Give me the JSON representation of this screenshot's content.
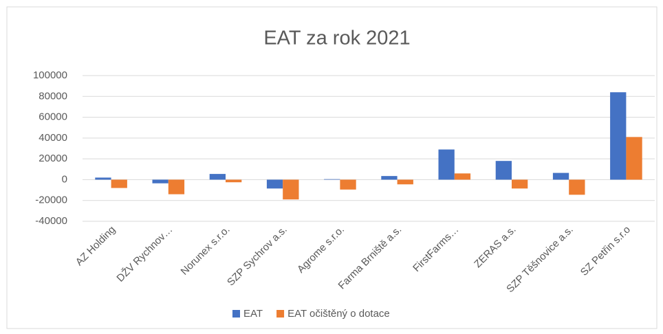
{
  "chart_data": {
    "type": "bar",
    "title": "EAT za rok 2021",
    "categories": [
      "AZ Holding",
      "DŽV Rychnov…",
      "Norunex s.r.o.",
      "SZP Sychrov a.s.",
      "Agrome s.r.o.",
      "Farma Brniště a.s.",
      "FirstFarms…",
      "ZERAS a.s.",
      "SZP Těšnovice a.s.",
      "SZ Petřin s.r.o"
    ],
    "series": [
      {
        "name": "EAT",
        "color": "#4472c4",
        "values": [
          2000,
          -3500,
          5500,
          -8500,
          500,
          3500,
          29000,
          18000,
          6500,
          84000
        ]
      },
      {
        "name": "EAT očištěný o dotace",
        "color": "#ed7d31",
        "values": [
          -8000,
          -14000,
          -2500,
          -19000,
          -9500,
          -4500,
          6000,
          -8500,
          -14500,
          41000
        ]
      }
    ],
    "ylim": [
      -40000,
      100000
    ],
    "yticks": [
      -40000,
      -20000,
      0,
      20000,
      40000,
      60000,
      80000,
      100000
    ],
    "grid": true,
    "legend": "bottom"
  }
}
